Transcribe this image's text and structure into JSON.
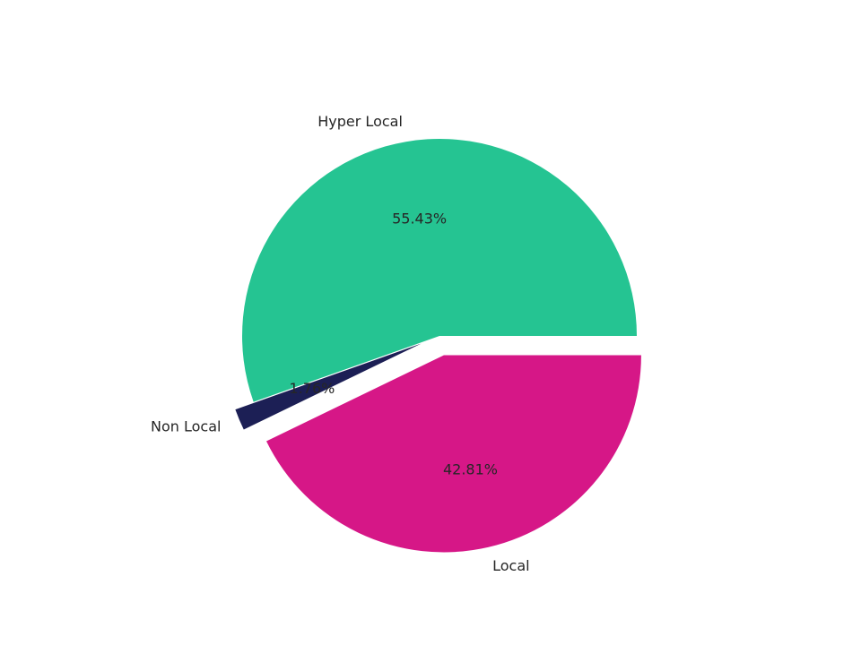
{
  "chart_data": {
    "type": "pie",
    "title": "",
    "slices": [
      {
        "label": "Hyper Local",
        "value": 55.43,
        "pct_label": "55.43%",
        "color": "#25c492",
        "exploded": false
      },
      {
        "label": "Non Local",
        "value": 1.76,
        "pct_label": "1.76%",
        "color": "#1c1f55",
        "exploded": true
      },
      {
        "label": "Local",
        "value": 42.81,
        "pct_label": "42.81%",
        "color": "#d61787",
        "exploded": true
      }
    ],
    "start_angle_deg": 0,
    "direction": "counterclockwise",
    "legend": "none"
  }
}
